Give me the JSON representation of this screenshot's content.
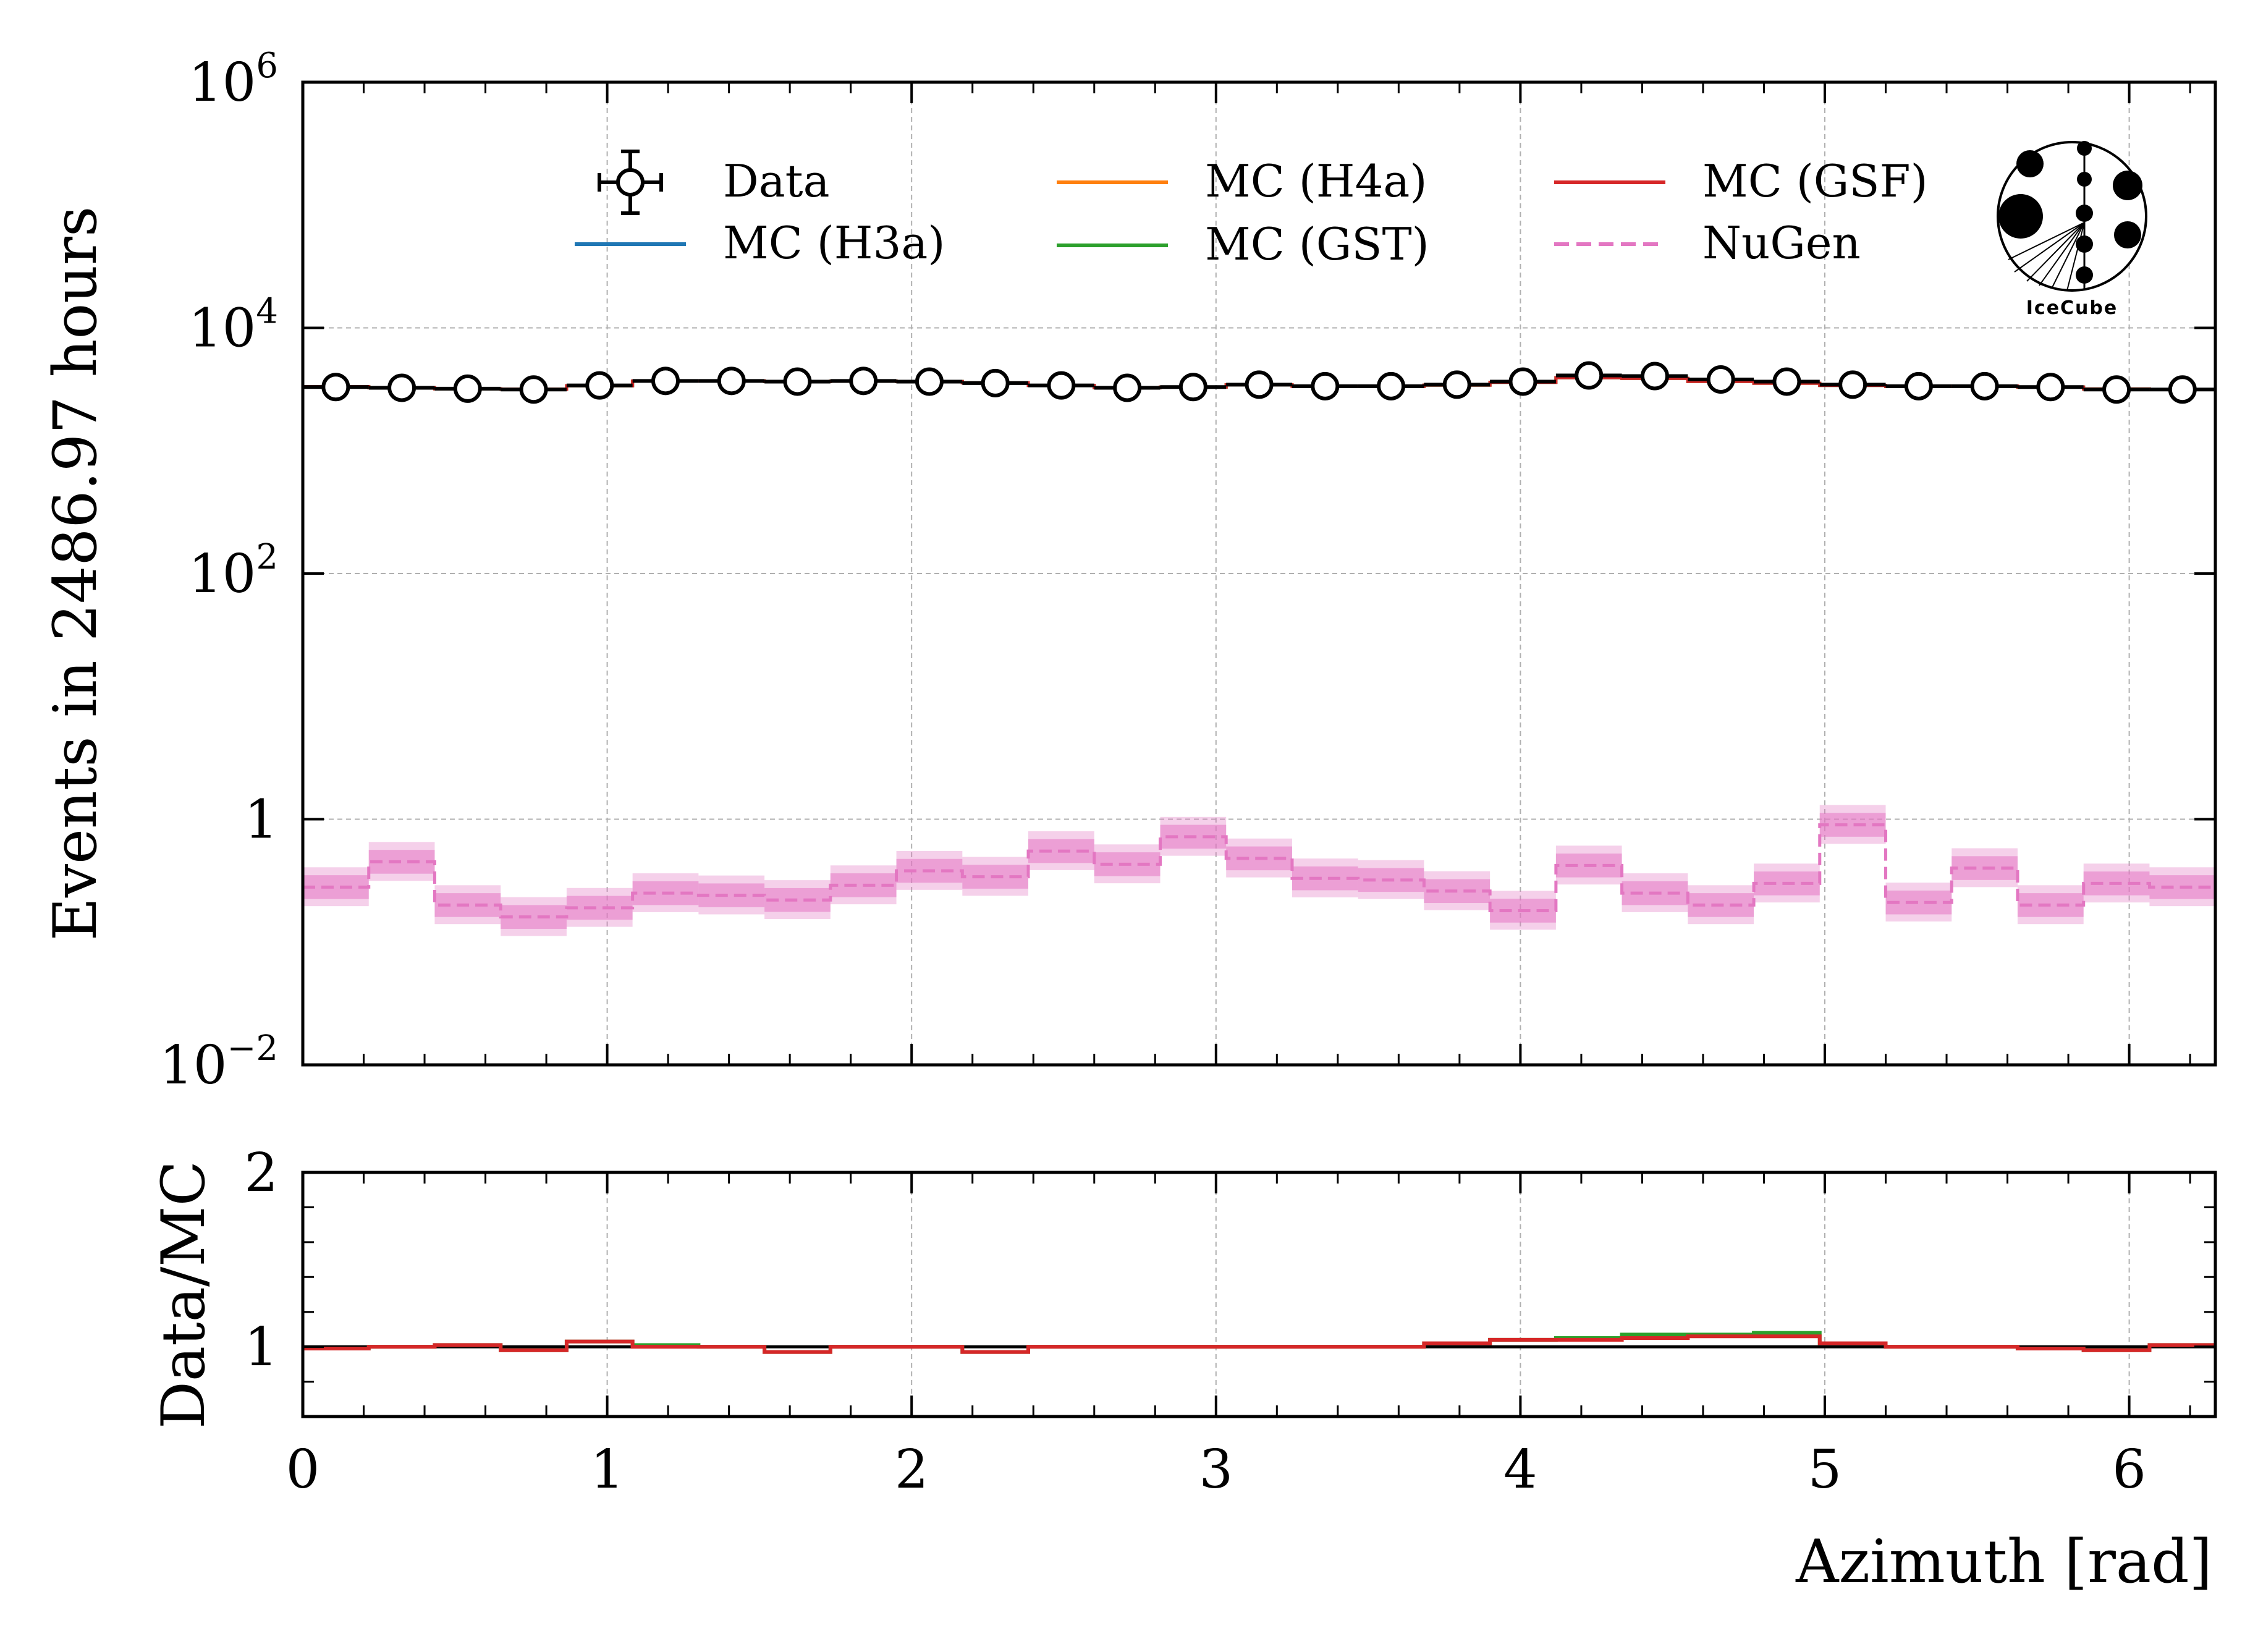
{
  "chart_data": [
    {
      "type": "line",
      "panel": "main",
      "ylabel": "Events in 2486.97 hours",
      "yscale": "log",
      "ylim": [
        0.01,
        1000000
      ],
      "xlim": [
        0,
        6.283
      ],
      "yticks": [
        {
          "value": 0.01,
          "base": "10",
          "exp": "−2"
        },
        {
          "value": 1,
          "base": "1",
          "exp": ""
        },
        {
          "value": 100,
          "base": "10",
          "exp": "2"
        },
        {
          "value": 10000,
          "base": "10",
          "exp": "4"
        },
        {
          "value": 1000000,
          "base": "10",
          "exp": "6"
        }
      ],
      "grid": true,
      "legend_position": "top",
      "bin_edges": [
        0,
        0.2167,
        0.4333,
        0.65,
        0.8667,
        1.0833,
        1.3,
        1.5167,
        1.7333,
        1.95,
        2.1667,
        2.3833,
        2.6,
        2.8167,
        3.0333,
        3.25,
        3.4667,
        3.6833,
        3.9,
        4.1167,
        4.3333,
        4.55,
        4.7667,
        4.9833,
        5.2,
        5.4167,
        5.6333,
        5.85,
        6.0667,
        6.2833
      ],
      "series": [
        {
          "name": "Data",
          "kind": "points",
          "color": "#000000",
          "values": [
            3300,
            3250,
            3200,
            3150,
            3400,
            3700,
            3700,
            3650,
            3700,
            3650,
            3550,
            3400,
            3250,
            3300,
            3450,
            3350,
            3350,
            3450,
            3650,
            4100,
            4050,
            3800,
            3650,
            3450,
            3350,
            3350,
            3300,
            3150,
            3150
          ]
        },
        {
          "name": "MC (H3a)",
          "kind": "step",
          "color": "#1f77b4",
          "values": [
            3320,
            3260,
            3190,
            3170,
            3380,
            3690,
            3700,
            3660,
            3680,
            3660,
            3570,
            3400,
            3260,
            3300,
            3440,
            3340,
            3330,
            3420,
            3600,
            3930,
            3880,
            3660,
            3540,
            3400,
            3330,
            3360,
            3300,
            3180,
            3150
          ]
        },
        {
          "name": "MC (H4a)",
          "kind": "step",
          "color": "#ff7f0e",
          "values": [
            3320,
            3260,
            3190,
            3170,
            3380,
            3690,
            3700,
            3660,
            3680,
            3660,
            3570,
            3400,
            3260,
            3300,
            3440,
            3340,
            3330,
            3420,
            3600,
            3930,
            3880,
            3660,
            3540,
            3400,
            3330,
            3360,
            3300,
            3180,
            3150
          ]
        },
        {
          "name": "MC (GST)",
          "kind": "step",
          "color": "#2ca02c",
          "values": [
            3320,
            3260,
            3190,
            3170,
            3380,
            3690,
            3700,
            3660,
            3680,
            3660,
            3570,
            3400,
            3260,
            3300,
            3440,
            3340,
            3330,
            3420,
            3600,
            3930,
            3880,
            3660,
            3540,
            3400,
            3330,
            3360,
            3300,
            3180,
            3150
          ]
        },
        {
          "name": "MC (GSF)",
          "kind": "step",
          "color": "#d62728",
          "values": [
            3320,
            3260,
            3190,
            3170,
            3380,
            3690,
            3700,
            3660,
            3680,
            3660,
            3570,
            3400,
            3260,
            3300,
            3440,
            3340,
            3330,
            3420,
            3600,
            3930,
            3880,
            3660,
            3540,
            3400,
            3330,
            3360,
            3300,
            3180,
            3150
          ]
        },
        {
          "name": "NuGen",
          "kind": "dashed-step",
          "color": "#e377c2",
          "values": [
            0.28,
            0.45,
            0.2,
            0.16,
            0.19,
            0.25,
            0.24,
            0.22,
            0.29,
            0.38,
            0.34,
            0.55,
            0.43,
            0.72,
            0.48,
            0.33,
            0.32,
            0.26,
            0.18,
            0.42,
            0.25,
            0.2,
            0.3,
            0.9,
            0.21,
            0.4,
            0.2,
            0.3,
            0.28
          ],
          "band_inner": [
            0.8,
            1.25
          ],
          "band_outer": [
            0.7,
            1.45
          ]
        }
      ]
    },
    {
      "type": "line",
      "panel": "ratio",
      "xlabel": "Azimuth [rad]",
      "ylabel": "Data/MC",
      "ylim": [
        0.6,
        2.0
      ],
      "xlim": [
        0,
        6.283
      ],
      "xticks": [
        0,
        1,
        2,
        3,
        4,
        5,
        6
      ],
      "yticks": [
        1,
        2
      ],
      "reference_line": 1.0,
      "ratio_values": {
        "MC (GSF)": [
          0.99,
          1.0,
          1.01,
          0.98,
          1.03,
          1.0,
          1.0,
          0.97,
          1.0,
          1.0,
          0.97,
          1.0,
          1.0,
          1.0,
          1.0,
          1.0,
          1.0,
          1.02,
          1.04,
          1.04,
          1.05,
          1.06,
          1.06,
          1.02,
          1.0,
          1.0,
          0.99,
          0.98,
          1.01
        ],
        "MC (GST)": [
          0.99,
          1.0,
          1.01,
          0.98,
          1.03,
          1.01,
          1.0,
          0.97,
          1.0,
          1.0,
          0.97,
          1.0,
          1.0,
          1.0,
          1.0,
          1.0,
          1.0,
          1.02,
          1.04,
          1.05,
          1.07,
          1.07,
          1.08,
          1.02,
          1.0,
          1.0,
          0.99,
          0.98,
          1.01
        ]
      }
    }
  ],
  "legend": {
    "col1": [
      "Data",
      "MC (H3a)"
    ],
    "col2": [
      "MC (H4a)",
      "MC (GST)"
    ],
    "col3": [
      "MC (GSF)",
      "NuGen"
    ]
  },
  "logo": {
    "text": "IceCube"
  }
}
